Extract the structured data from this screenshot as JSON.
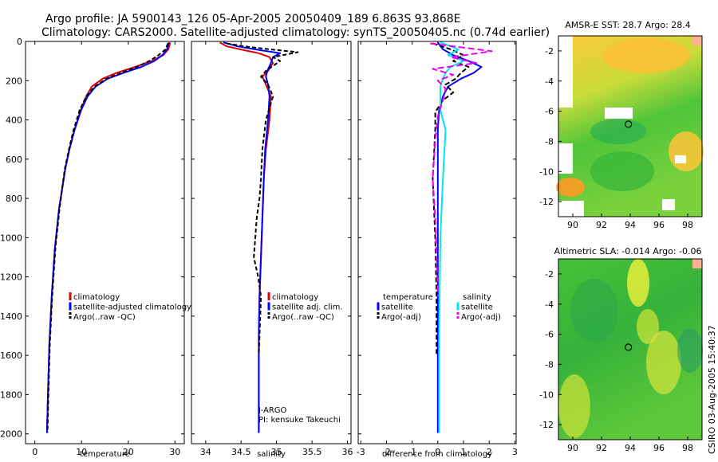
{
  "title_line1": "Argo profile: JA 5900143_126 05-Apr-2005 20050409_189 6.863S 93.868E",
  "title_line2": "Climatology: CARS2000. Satellite-adjusted climatology: synTS_20050405.nc (0.74d earlier)",
  "side_stamp": "CSIRO 03-Aug-2005 15:40:37",
  "colors": {
    "climatology": "#dd0000",
    "satellite": "#0000ff",
    "argo": "#000000",
    "sal_satellite": "#00e5ee",
    "sal_argo": "#ee00ee"
  },
  "chart_data": [
    {
      "type": "line",
      "name": "temperature",
      "xlabel": "temperature",
      "xlim": [
        -2,
        32
      ],
      "ylim": [
        0,
        2050
      ],
      "y_reversed": true,
      "xticks": [
        0,
        10,
        20,
        30
      ],
      "yticks": [
        0,
        200,
        400,
        600,
        800,
        1000,
        1200,
        1400,
        1600,
        1800,
        2000
      ],
      "legend": [
        "climatology",
        "satellite-adjusted climatology",
        "Argo(..raw -QC)"
      ],
      "annotations": [],
      "series": [
        {
          "name": "climatology",
          "color": "#dd0000",
          "dash": "",
          "x": [
            29.0,
            28.6,
            27.5,
            25.0,
            21.5,
            17.5,
            14.5,
            12.2,
            11.0,
            9.8,
            8.5,
            7.4,
            6.5,
            5.2,
            4.3,
            3.6,
            3.1,
            2.8,
            2.6
          ],
          "y": [
            5,
            40,
            70,
            100,
            130,
            160,
            190,
            230,
            280,
            350,
            450,
            550,
            650,
            850,
            1050,
            1300,
            1550,
            1800,
            1995
          ]
        },
        {
          "name": "satellite-adjusted climatology",
          "color": "#0000ff",
          "dash": "",
          "x": [
            28.7,
            28.3,
            27.3,
            25.6,
            22.8,
            19.0,
            15.6,
            13.0,
            11.3,
            9.9,
            8.5,
            7.4,
            6.5,
            5.2,
            4.3,
            3.6,
            3.1,
            2.8,
            2.6
          ],
          "y": [
            5,
            40,
            70,
            100,
            130,
            160,
            190,
            230,
            280,
            350,
            450,
            550,
            650,
            850,
            1050,
            1300,
            1550,
            1800,
            1995
          ]
        },
        {
          "name": "Argo(..raw -QC)",
          "color": "#000000",
          "dash": "5,3",
          "x": [
            28.5,
            28.0,
            26.5,
            24.5,
            21.8,
            18.5,
            15.3,
            12.8,
            11.0,
            9.6,
            8.3,
            7.3,
            6.4,
            5.3,
            4.4,
            3.7,
            3.2,
            2.9,
            2.7
          ],
          "y": [
            10,
            40,
            70,
            100,
            130,
            160,
            190,
            230,
            280,
            350,
            450,
            550,
            650,
            850,
            1050,
            1300,
            1550,
            1800,
            1995
          ]
        }
      ]
    },
    {
      "type": "line",
      "name": "salinity",
      "xlabel": "salinity",
      "xlim": [
        33.8,
        36.05
      ],
      "ylim": [
        0,
        2050
      ],
      "y_reversed": true,
      "xticks": [
        34,
        34.5,
        35,
        35.5,
        36
      ],
      "xticklabels": [
        "34",
        "34.5",
        "35",
        "35.5",
        "36"
      ],
      "legend": [
        "climatology",
        "satellite adj. clim.",
        "Argo(..raw -QC)"
      ],
      "annotations": [
        "J-ARGO",
        "PI: kensuke Takeuchi"
      ],
      "series": [
        {
          "name": "climatology",
          "color": "#dd0000",
          "dash": "",
          "x": [
            34.2,
            34.3,
            34.55,
            34.75,
            34.9,
            34.95,
            34.88,
            34.8,
            34.85,
            34.92,
            34.9,
            34.85,
            34.82,
            34.8,
            34.78,
            34.76,
            34.75,
            34.75,
            34.75
          ],
          "y": [
            5,
            25,
            45,
            60,
            80,
            110,
            150,
            180,
            220,
            280,
            400,
            550,
            700,
            900,
            1100,
            1300,
            1500,
            1700,
            1995
          ]
        },
        {
          "name": "satellite adj. clim.",
          "color": "#0000ff",
          "dash": "",
          "x": [
            34.25,
            34.45,
            34.78,
            35.05,
            34.95,
            34.92,
            34.87,
            34.85,
            34.88,
            34.9,
            34.88,
            34.84,
            34.82,
            34.8,
            34.78,
            34.76,
            34.75,
            34.75,
            34.75
          ],
          "y": [
            5,
            25,
            45,
            60,
            80,
            110,
            150,
            180,
            220,
            280,
            400,
            550,
            700,
            900,
            1100,
            1300,
            1500,
            1700,
            1995
          ]
        },
        {
          "name": "Argo(..raw -QC)",
          "color": "#000000",
          "dash": "5,3",
          "x": [
            34.3,
            34.55,
            34.9,
            35.3,
            34.95,
            35.05,
            34.85,
            34.78,
            34.88,
            34.95,
            34.85,
            34.8,
            34.78,
            34.76,
            34.72,
            34.7,
            34.68,
            34.74,
            34.78,
            34.77,
            34.76,
            34.75
          ],
          "y": [
            10,
            25,
            40,
            55,
            80,
            100,
            150,
            180,
            220,
            280,
            400,
            550,
            700,
            800,
            900,
            1000,
            1100,
            1200,
            1300,
            1400,
            1500,
            1600
          ]
        }
      ]
    },
    {
      "type": "line",
      "name": "difference from climatology",
      "xlabel": "difference from climatology",
      "xlim": [
        -3.1,
        3.05
      ],
      "ylim": [
        0,
        2050
      ],
      "y_reversed": true,
      "xticks": [
        -3,
        -2,
        -1,
        0,
        1,
        2,
        3
      ],
      "xticklabels": [
        "-3",
        "-2",
        "-1",
        "0",
        "1",
        "2",
        "3"
      ],
      "legend_left": [
        "temperature",
        "satellite",
        "Argo(-adj)"
      ],
      "legend_right": [
        "salinity",
        "satellite",
        "Argo(-adj)"
      ],
      "annotations": [],
      "series": [
        {
          "name": "temperature satellite",
          "color": "#0000ff",
          "dash": "",
          "x": [
            0,
            0.2,
            0.6,
            1.2,
            1.7,
            1.4,
            0.9,
            0.4,
            0.2,
            0.05,
            0,
            0,
            0,
            0,
            0
          ],
          "y": [
            5,
            40,
            70,
            100,
            130,
            160,
            190,
            230,
            280,
            350,
            450,
            600,
            1000,
            1500,
            1995
          ]
        },
        {
          "name": "temperature Argo(-adj)",
          "color": "#000000",
          "dash": "6,3",
          "x": [
            -0.2,
            0.5,
            1.0,
            0.6,
            1.2,
            0.9,
            0.7,
            0.3,
            0.6,
            0.2,
            -0.1,
            -0.1,
            -0.2,
            -0.1,
            -0.05,
            -0.05
          ],
          "y": [
            10,
            40,
            70,
            100,
            130,
            160,
            190,
            220,
            260,
            300,
            360,
            450,
            700,
            1000,
            1300,
            1600
          ]
        },
        {
          "name": "salinity satellite",
          "color": "#00e5ee",
          "dash": "",
          "x": [
            0.1,
            0.8,
            0.4,
            1.0,
            0.5,
            0.3,
            0.2,
            0.1,
            0.1,
            0.1,
            0.3,
            0.2,
            0.1,
            0.05,
            0.05
          ],
          "y": [
            5,
            40,
            70,
            100,
            130,
            160,
            190,
            230,
            280,
            350,
            450,
            700,
            1000,
            1500,
            1995
          ]
        },
        {
          "name": "salinity Argo(-adj)",
          "color": "#ee00ee",
          "dash": "8,4",
          "x": [
            -0.3,
            2.1,
            0.5,
            1.5,
            -0.2,
            0.6,
            0.0,
            0.3,
            0.2,
            0.0,
            -0.1,
            -0.2,
            -0.1,
            -0.05,
            0.0
          ],
          "y": [
            10,
            50,
            80,
            110,
            140,
            170,
            200,
            240,
            300,
            380,
            500,
            700,
            900,
            1100,
            1300
          ]
        }
      ]
    },
    {
      "type": "heatmap",
      "name": "sst map",
      "title": "AMSR-E SST: 28.7 Argo: 28.4",
      "xlim": [
        89,
        99
      ],
      "ylim": [
        -13,
        -1
      ],
      "xticks": [
        90,
        92,
        94,
        96,
        98
      ],
      "yticks": [
        -2,
        -4,
        -6,
        -8,
        -10,
        -12
      ],
      "marker": {
        "lon": 93.868,
        "lat": -6.863
      }
    },
    {
      "type": "heatmap",
      "name": "sla map",
      "title": "Altimetric SLA: -0.014 Argo: -0.06",
      "xlim": [
        89,
        99
      ],
      "ylim": [
        -13,
        -1
      ],
      "xticks": [
        90,
        92,
        94,
        96,
        98
      ],
      "yticks": [
        -2,
        -4,
        -6,
        -8,
        -10,
        -12
      ],
      "marker": {
        "lon": 93.868,
        "lat": -6.863
      }
    }
  ]
}
